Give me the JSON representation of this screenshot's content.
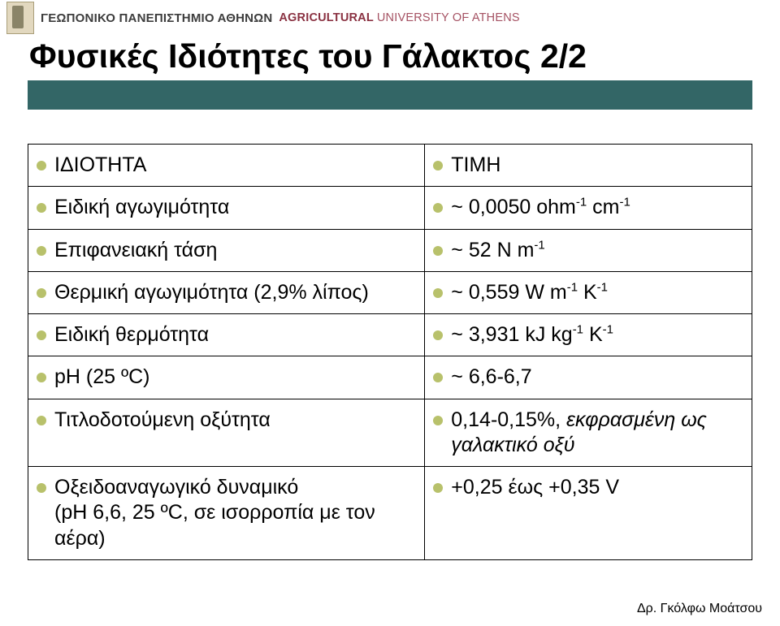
{
  "header": {
    "greek": "ΓΕΩΠΟΝΙΚΟ ΠΑΝΕΠΙΣΤΗΜΙΟ ΑΘΗΝΩΝ",
    "english_bold": "AGRICULTURAL",
    "english_rest": "UNIVERSITY OF ATHENS"
  },
  "title": "Φυσικές Ιδιότητες του Γάλακτος 2/2",
  "table": {
    "col_property": "ΙΔΙΟΤΗΤΑ",
    "col_value": "ΤΙΜΗ",
    "rows": [
      {
        "prop": "Ειδική αγωγιμότητα",
        "val_html": "~ 0,0050 ohm<sup>-1</sup> cm<sup>-1</sup>"
      },
      {
        "prop": "Επιφανειακή τάση",
        "val_html": "~ 52 N m<sup>-1</sup>"
      },
      {
        "prop": "Θερμική αγωγιμότητα (2,9% λίπος)",
        "val_html": "~ 0,559 W m<sup>-1</sup> K<sup>-1</sup>"
      },
      {
        "prop": "Ειδική θερμότητα",
        "val_html": "~ 3,931 kJ kg<sup>-1</sup> K<sup>-1</sup>"
      },
      {
        "prop": "pH (25 ºC)",
        "val_html": "~ 6,6-6,7"
      },
      {
        "prop": "Τιτλοδοτούμενη οξύτητα",
        "val_html": "0,14-0,15%, <span class=\"it\">εκφρασμένη ως γαλακτικό οξύ</span>"
      },
      {
        "prop": "Οξειδοαναγωγικό δυναμικό<br>(pH 6,6, 25 ºC, σε ισορροπία με τον αέρα)",
        "val_html": "+0,25 έως +0,35 V"
      }
    ]
  },
  "footer": "Δρ. Γκόλφω Μοάτσου",
  "colors": {
    "title_bar": "#336666",
    "bullet": "#b8c16b",
    "header_red": "#8a3242"
  }
}
